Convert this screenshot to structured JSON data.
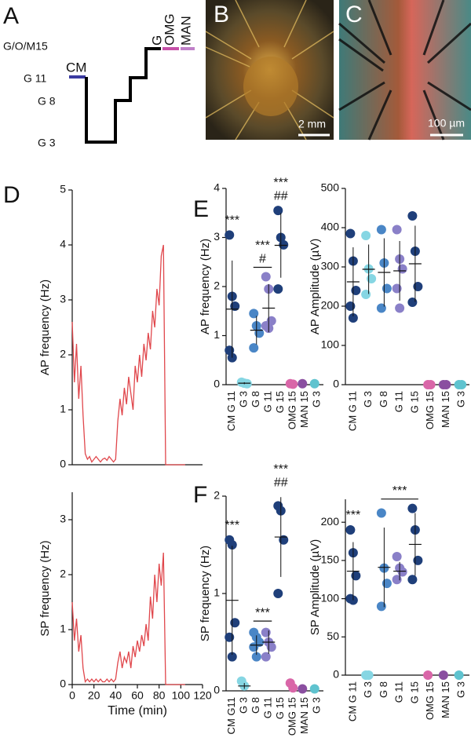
{
  "panel_labels": [
    "A",
    "B",
    "C",
    "D",
    "E",
    "F"
  ],
  "protocol": {
    "levels": [
      "G/O/M15",
      "G 11",
      "G 8",
      "G 3"
    ],
    "steps": [
      "CM",
      "G",
      "OMG",
      "MAN"
    ]
  },
  "images": {
    "B_scale": "2 mm",
    "C_scale": "100 µm"
  },
  "chart_data": [
    {
      "type": "line",
      "ylabel": "AP frequency (Hz)",
      "color": "#e0474c",
      "x": [
        0,
        2,
        4,
        6,
        8,
        10,
        12,
        14,
        16,
        18,
        20,
        22,
        24,
        26,
        28,
        30,
        32,
        34,
        36,
        38,
        40,
        42,
        44,
        46,
        48,
        50,
        52,
        54,
        56,
        58,
        60,
        62,
        64,
        66,
        68,
        70,
        72,
        74,
        76,
        78,
        80,
        82,
        84,
        86,
        88,
        90,
        92,
        94,
        96,
        98,
        100,
        102,
        104
      ],
      "values": [
        2.6,
        1.5,
        2.2,
        1.2,
        1.8,
        0.9,
        0.2,
        0.1,
        0.15,
        0.05,
        0.1,
        0.15,
        0.1,
        0.05,
        0.1,
        0.12,
        0.08,
        0.15,
        0.1,
        0.05,
        0.1,
        0.8,
        1.2,
        0.9,
        1.4,
        1.1,
        1.6,
        1.3,
        1.0,
        1.8,
        1.5,
        2.0,
        1.6,
        2.2,
        1.9,
        2.4,
        2.1,
        2.8,
        2.5,
        3.2,
        2.9,
        3.8,
        4.0,
        0,
        0,
        0,
        0,
        0,
        0,
        0,
        0,
        0,
        0
      ],
      "xlim": [
        0,
        120
      ],
      "ylim": [
        0,
        5
      ],
      "yticks": [
        0,
        1,
        2,
        3,
        4,
        5
      ]
    },
    {
      "type": "line",
      "ylabel": "SP frequency (Hz)",
      "xlabel": "Time (min)",
      "color": "#e0474c",
      "x": [
        0,
        2,
        4,
        6,
        8,
        10,
        12,
        14,
        16,
        18,
        20,
        22,
        24,
        26,
        28,
        30,
        32,
        34,
        36,
        38,
        40,
        42,
        44,
        46,
        48,
        50,
        52,
        54,
        56,
        58,
        60,
        62,
        64,
        66,
        68,
        70,
        72,
        74,
        76,
        78,
        80,
        82,
        84,
        86,
        88,
        90,
        92,
        94,
        96,
        98,
        100,
        102,
        104
      ],
      "values": [
        1.5,
        0.8,
        1.2,
        0.6,
        0.9,
        0.3,
        0.05,
        0.1,
        0.05,
        0.1,
        0.05,
        0.1,
        0.05,
        0.1,
        0.05,
        0.05,
        0.1,
        0.05,
        0.1,
        0.05,
        0.1,
        0.4,
        0.6,
        0.3,
        0.5,
        0.4,
        0.6,
        0.3,
        0.7,
        0.5,
        0.8,
        0.6,
        0.9,
        0.7,
        1.1,
        0.8,
        1.6,
        1.2,
        2.0,
        1.5,
        2.2,
        1.8,
        2.4,
        0,
        0,
        0,
        0,
        0,
        0,
        0,
        0,
        0,
        0
      ],
      "xlim": [
        0,
        120
      ],
      "xticks": [
        0,
        20,
        40,
        60,
        80,
        100,
        120
      ],
      "ylim": [
        0,
        3.5
      ],
      "yticks": [
        0,
        1,
        2,
        3
      ]
    },
    {
      "type": "dot",
      "ylabel": "AP frequency (Hz)",
      "categories": [
        "CM G 11",
        "G 3",
        "G 8",
        "G 11",
        "G 15",
        "OMG 15",
        "MAN 15",
        "G 3"
      ],
      "groups": [
        {
          "color": "#1f3f7a",
          "values": [
            3.05,
            1.8,
            1.6,
            0.7,
            0.55
          ],
          "mean": 1.54,
          "sd": 0.99
        },
        {
          "color": "#86d6e3",
          "values": [
            0.05,
            0.03,
            0.02
          ],
          "mean": 0.03,
          "sd": 0.02
        },
        {
          "color": "#4a86c6",
          "values": [
            1.45,
            1.2,
            1.05,
            0.75
          ],
          "mean": 1.11,
          "sd": 0.29
        },
        {
          "color": "#8a80c8",
          "values": [
            2.2,
            1.95,
            1.3,
            1.2,
            1.15
          ],
          "mean": 1.56,
          "sd": 0.49
        },
        {
          "color": "#1f3f7a",
          "values": [
            3.55,
            3.0,
            2.85,
            1.95
          ],
          "mean": 2.84,
          "sd": 0.66
        },
        {
          "color": "#d966a8",
          "values": [
            0.02,
            0.01
          ]
        },
        {
          "color": "#8a4fa0",
          "values": [
            0.02
          ]
        },
        {
          "color": "#5fc3cf",
          "values": [
            0.02
          ]
        }
      ],
      "annotations": [
        {
          "texts": [
            "***"
          ],
          "span": [
            0
          ]
        },
        {
          "texts": [
            "***",
            "#"
          ],
          "span": [
            2,
            3
          ]
        },
        {
          "texts": [
            "***",
            "##"
          ],
          "span": [
            4
          ]
        }
      ],
      "ylim": [
        0,
        4
      ],
      "yticks": [
        0,
        1,
        2,
        3,
        4
      ]
    },
    {
      "type": "dot",
      "ylabel": "AP Amplitude (µV)",
      "categories": [
        "CM G 11",
        "G 3",
        "G 8",
        "G 11",
        "G 15",
        "OMG 15",
        "MAN 15",
        "G 3"
      ],
      "groups": [
        {
          "color": "#1f3f7a",
          "values": [
            385,
            315,
            240,
            200,
            170
          ],
          "mean": 262,
          "sd": 88
        },
        {
          "color": "#86d6e3",
          "values": [
            380,
            295,
            270,
            230
          ],
          "mean": 294,
          "sd": 63
        },
        {
          "color": "#4a86c6",
          "values": [
            395,
            310,
            245,
            195
          ],
          "mean": 286,
          "sd": 87
        },
        {
          "color": "#8a80c8",
          "values": [
            395,
            320,
            295,
            245,
            195
          ],
          "mean": 290,
          "sd": 76
        },
        {
          "color": "#1f3f7a",
          "values": [
            430,
            340,
            250,
            210
          ],
          "mean": 308,
          "sd": 97
        },
        {
          "color": "#d966a8",
          "values": [
            0,
            0
          ]
        },
        {
          "color": "#8a4fa0",
          "values": [
            0,
            0
          ]
        },
        {
          "color": "#5fc3cf",
          "values": [
            0,
            0
          ]
        }
      ],
      "ylim": [
        0,
        500
      ],
      "yticks": [
        0,
        100,
        200,
        300,
        400,
        500
      ]
    },
    {
      "type": "dot",
      "ylabel": "SP frequency (Hz)",
      "categories": [
        "CM G11",
        "G 3",
        "G 8",
        "G 11",
        "G 15",
        "OMG 15",
        "MAN 15",
        "G 3"
      ],
      "groups": [
        {
          "color": "#1f3f7a",
          "values": [
            1.55,
            1.5,
            0.7,
            0.55,
            0.35
          ],
          "mean": 0.93,
          "sd": 0.56
        },
        {
          "color": "#86d6e3",
          "values": [
            0.1,
            0.05
          ],
          "mean": 0.05,
          "sd": 0.03
        },
        {
          "color": "#4a86c6",
          "values": [
            0.6,
            0.55,
            0.5,
            0.45,
            0.35
          ],
          "mean": 0.47,
          "sd": 0.1
        },
        {
          "color": "#8a80c8",
          "values": [
            0.6,
            0.5,
            0.45,
            0.35
          ],
          "mean": 0.5,
          "sd": 0.12
        },
        {
          "color": "#1f3f7a",
          "values": [
            1.9,
            1.85,
            1.55,
            1.0
          ],
          "mean": 1.58,
          "sd": 0.41
        },
        {
          "color": "#d966a8",
          "values": [
            0.08,
            0.03
          ]
        },
        {
          "color": "#8a4fa0",
          "values": [
            0.02
          ]
        },
        {
          "color": "#5fc3cf",
          "values": [
            0.02
          ]
        }
      ],
      "annotations": [
        {
          "texts": [
            "***"
          ],
          "span": [
            0
          ]
        },
        {
          "texts": [
            "***"
          ],
          "span": [
            2,
            3
          ]
        },
        {
          "texts": [
            "***",
            "##"
          ],
          "span": [
            4
          ]
        }
      ],
      "ylim": [
        0,
        2
      ],
      "yticks": [
        0,
        1,
        2
      ]
    },
    {
      "type": "dot",
      "ylabel": "SP Amplitude (µV)",
      "categories": [
        "CM G 11",
        "G 3",
        "G 8",
        "G 11",
        "G 15",
        "OMG 15",
        "MAN 15",
        "G 3"
      ],
      "groups": [
        {
          "color": "#1f3f7a",
          "values": [
            190,
            160,
            130,
            100,
            98
          ],
          "mean": 136,
          "sd": 38
        },
        {
          "color": "#86d6e3",
          "values": [
            0,
            0
          ]
        },
        {
          "color": "#4a86c6",
          "values": [
            212,
            140,
            120,
            90
          ],
          "mean": 141,
          "sd": 52
        },
        {
          "color": "#8a80c8",
          "values": [
            155,
            140,
            135,
            125
          ],
          "mean": 136,
          "sd": 12
        },
        {
          "color": "#1f3f7a",
          "values": [
            218,
            190,
            150,
            125
          ],
          "mean": 171,
          "sd": 41
        },
        {
          "color": "#d966a8",
          "values": [
            0
          ]
        },
        {
          "color": "#8a4fa0",
          "values": [
            0
          ]
        },
        {
          "color": "#5fc3cf",
          "values": [
            0
          ]
        }
      ],
      "annotations": [
        {
          "texts": [
            "***"
          ],
          "span": [
            0
          ]
        },
        {
          "texts": [
            "***"
          ],
          "span": [
            2,
            4
          ]
        }
      ],
      "ylim": [
        0,
        230
      ],
      "yticks": [
        0,
        50,
        100,
        150,
        200
      ]
    }
  ]
}
